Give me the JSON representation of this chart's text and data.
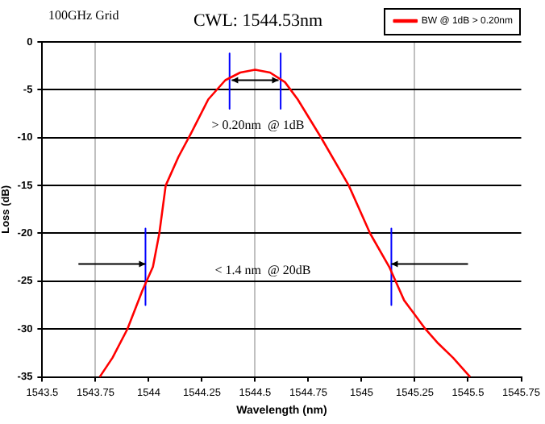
{
  "chart_data": {
    "type": "line",
    "title": "CWL: 1544.53nm",
    "xlabel": "Wavelength (nm)",
    "ylabel": "Loss (dB)",
    "annotations": [
      "100GHz Grid",
      "> 0.20nm  @ 1dB",
      "< 1.4 nm  @ 20dB"
    ],
    "series": [
      {
        "name": "BW @ 1dB > 0.20nm",
        "color": "#ff0000",
        "x": [
          1543.77,
          1543.83,
          1543.9,
          1543.97,
          1544.02,
          1544.05,
          1544.08,
          1544.14,
          1544.2,
          1544.28,
          1544.36,
          1544.43,
          1544.5,
          1544.57,
          1544.64,
          1544.7,
          1544.81,
          1544.94,
          1545.04,
          1545.13,
          1545.2,
          1545.3,
          1545.36,
          1545.43,
          1545.51
        ],
        "values": [
          -35,
          -33,
          -30,
          -26,
          -23.5,
          -20,
          -15,
          -12,
          -9.5,
          -6,
          -4,
          -3.2,
          -2.9,
          -3.2,
          -4.2,
          -6,
          -10,
          -15,
          -20,
          -23.5,
          -27,
          -30,
          -31.5,
          -33,
          -35
        ]
      },
      {
        "color": "#0000ff",
        "x": [
          1544.38,
          1544.38
        ],
        "values": [
          -1.2,
          -7
        ]
      },
      {
        "color": "#0000ff",
        "x": [
          1544.62,
          1544.62
        ],
        "values": [
          -1.2,
          -7
        ]
      },
      {
        "color": "#0000ff",
        "x": [
          1543.985,
          1543.985
        ],
        "values": [
          -19.5,
          -27.5
        ]
      },
      {
        "color": "#0000ff",
        "x": [
          1545.14,
          1545.14
        ],
        "values": [
          -19.5,
          -27.5
        ]
      }
    ],
    "xlim": [
      1543.5,
      1545.75
    ],
    "xticks": [
      1543.5,
      1543.75,
      1544,
      1544.25,
      1544.5,
      1544.75,
      1545,
      1545.25,
      1545.5,
      1545.75
    ],
    "ylim": [
      -35,
      0
    ],
    "yticks": [
      -35,
      -30,
      -25,
      -20,
      -15,
      -10,
      -5,
      0
    ],
    "grid": true,
    "legend": "top right",
    "marker": "none",
    "line_style": "solid"
  }
}
